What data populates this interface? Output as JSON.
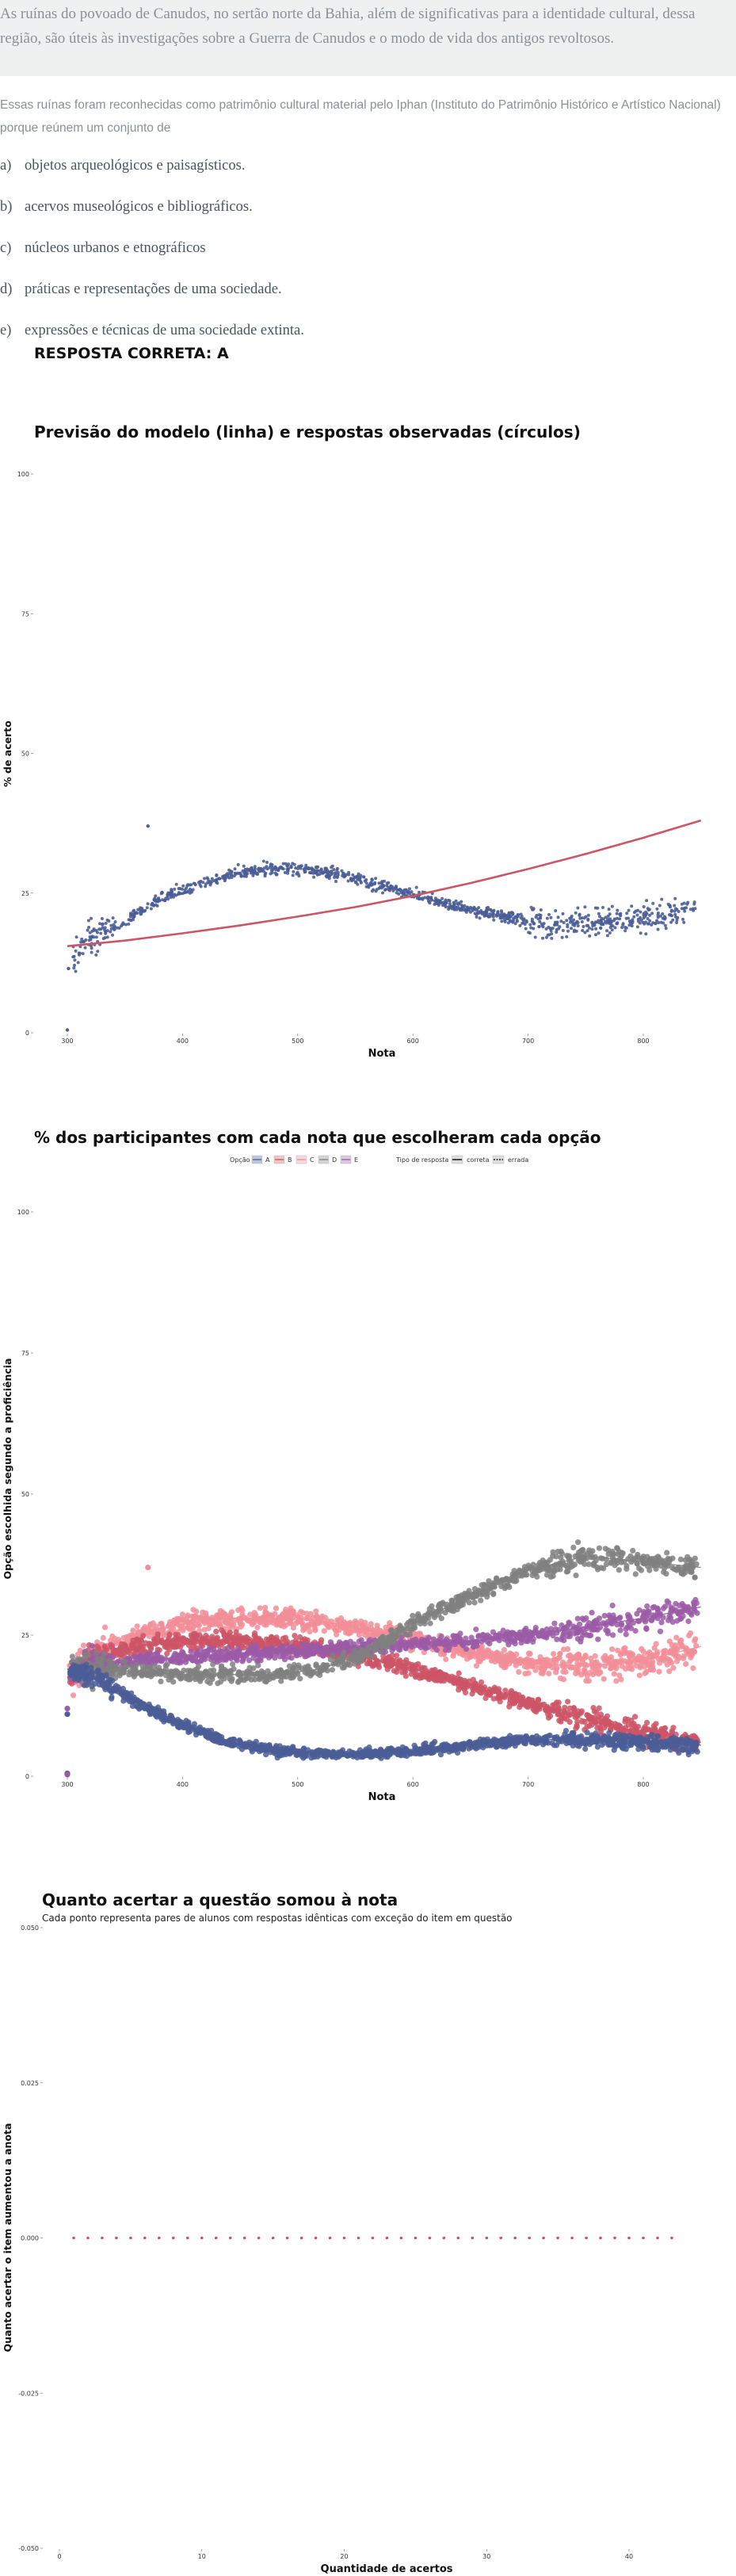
{
  "question": {
    "stem": "As ruínas do povoado de Canudos, no sertão norte da Bahia, além de significativas para a identidade cultural, dessa região, são úteis às investigações sobre a Guerra de Canudos e o modo de vida dos antigos revoltosos.",
    "source": "Essas ruínas foram reconhecidas como patrimônio cultural material pelo Iphan (Instituto do Patrimônio Histórico e Artístico Nacional) porque reúnem um conjunto de",
    "options": [
      {
        "letter": "a)",
        "text": "objetos arqueológicos e paisagísticos."
      },
      {
        "letter": "b)",
        "text": "acervos museológicos e bibliográficos."
      },
      {
        "letter": "c)",
        "text": "núcleos urbanos e etnográficos"
      },
      {
        "letter": "d)",
        "text": "práticas e representações de uma sociedade."
      },
      {
        "letter": "e)",
        "text": "expressões e técnicas de uma sociedade extinta."
      }
    ],
    "answer": "RESPOSTA CORRETA: A"
  },
  "colors": {
    "A": "#4a5d96",
    "B": "#cc5566",
    "C": "#f28e98",
    "D": "#808080",
    "E": "#9b5ba6",
    "model": "#cc5566",
    "stem_bg": "#eef1f0"
  },
  "chart_data": [
    {
      "type": "scatter",
      "title": "Previsão do modelo (linha) e respostas observadas (círculos)",
      "xlabel": "Nota",
      "ylabel": "% de acerto",
      "xlim": [
        300,
        850
      ],
      "ylim": [
        0,
        100
      ],
      "x_ticks": [
        "300",
        "400",
        "500",
        "600",
        "700",
        "800"
      ],
      "y_ticks": [
        "0",
        "25",
        "50",
        "75",
        "100"
      ],
      "observed_trend": {
        "x": [
          300,
          320,
          350,
          380,
          420,
          460,
          500,
          540,
          580,
          620,
          660,
          700,
          740,
          780,
          820,
          850
        ],
        "y": [
          12,
          17,
          20,
          24,
          27,
          29,
          29.5,
          28,
          26,
          23.5,
          21.5,
          20,
          19.5,
          20,
          21,
          22
        ]
      },
      "outliers": [
        {
          "x": 300,
          "y": 0.5
        },
        {
          "x": 301,
          "y": 11.5
        },
        {
          "x": 370,
          "y": 37
        }
      ],
      "model_line": {
        "x": [
          300,
          350,
          400,
          450,
          500,
          550,
          600,
          650,
          700,
          750,
          800,
          850
        ],
        "y": [
          15.5,
          16.5,
          17.8,
          19.2,
          20.8,
          22.5,
          24.5,
          26.8,
          29.3,
          32.0,
          34.9,
          38.0
        ]
      }
    },
    {
      "type": "scatter",
      "title": "% dos participantes com cada nota que escolheram cada opção",
      "xlabel": "Nota",
      "ylabel": "Opção escolhida segundo a proficiência",
      "xlim": [
        300,
        850
      ],
      "ylim": [
        0,
        100
      ],
      "x_ticks": [
        "300",
        "400",
        "500",
        "600",
        "700",
        "800"
      ],
      "y_ticks": [
        "0",
        "25",
        "50",
        "75",
        "100"
      ],
      "legend": {
        "option_title": "Opção",
        "options": [
          "A",
          "B",
          "C",
          "D",
          "E"
        ],
        "type_title": "Tipo de resposta",
        "types": [
          "correta",
          "errada"
        ]
      },
      "series": [
        {
          "name": "A",
          "x": [
            300,
            330,
            360,
            400,
            440,
            480,
            520,
            560,
            600,
            650,
            700,
            750,
            800,
            850
          ],
          "y": [
            19,
            17,
            13,
            9,
            6,
            4.5,
            4,
            4,
            4.5,
            5.5,
            6.5,
            6.5,
            6,
            5.5
          ]
        },
        {
          "name": "B",
          "x": [
            300,
            330,
            360,
            400,
            440,
            480,
            520,
            560,
            600,
            650,
            700,
            750,
            800,
            850
          ],
          "y": [
            18,
            21,
            23,
            24,
            24,
            23.5,
            22.5,
            21,
            19,
            16,
            13,
            10,
            7.5,
            6
          ]
        },
        {
          "name": "C",
          "x": [
            300,
            330,
            360,
            400,
            440,
            480,
            520,
            560,
            600,
            650,
            700,
            750,
            800,
            850
          ],
          "y": [
            17,
            22,
            25,
            27,
            28,
            28,
            27.5,
            26,
            24.5,
            22,
            20,
            19.5,
            20.5,
            23
          ]
        },
        {
          "name": "D",
          "x": [
            300,
            330,
            360,
            400,
            440,
            480,
            520,
            560,
            600,
            650,
            700,
            750,
            800,
            850
          ],
          "y": [
            19,
            19,
            18.5,
            18,
            18,
            18,
            19,
            22,
            27,
            32,
            36.5,
            39,
            38,
            37
          ]
        },
        {
          "name": "E",
          "x": [
            300,
            330,
            360,
            400,
            440,
            480,
            520,
            560,
            600,
            650,
            700,
            750,
            800,
            850
          ],
          "y": [
            19,
            20,
            20.5,
            21,
            21.5,
            22,
            22.5,
            23,
            23.5,
            24,
            25,
            26.5,
            28,
            30
          ]
        }
      ],
      "outliers": [
        {
          "series": "A",
          "x": 300,
          "y": 0.5
        },
        {
          "series": "A",
          "x": 300,
          "y": 11
        },
        {
          "series": "C",
          "x": 370,
          "y": 37
        },
        {
          "series": "E",
          "x": 300,
          "y": 0.3
        },
        {
          "series": "E",
          "x": 300,
          "y": 12
        }
      ]
    },
    {
      "type": "scatter",
      "title": "Quanto acertar a questão somou à nota",
      "subtitle": "Cada ponto representa pares de alunos com respostas idênticas com exceção do item em questão",
      "xlabel": "Quantidade de acertos",
      "ylabel": "Quanto acertar o item aumentou a anota",
      "xlim": [
        -0.5,
        45.5
      ],
      "ylim": [
        -0.05,
        0.05
      ],
      "x_ticks": [
        "0",
        "10",
        "20",
        "30",
        "40"
      ],
      "y_ticks": [
        "-0.050",
        "-0.025",
        "0.000",
        "0.025",
        "0.050"
      ],
      "points": {
        "x": [
          1,
          2,
          3,
          4,
          5,
          6,
          7,
          8,
          9,
          10,
          11,
          12,
          13,
          14,
          15,
          16,
          17,
          18,
          19,
          20,
          21,
          22,
          23,
          24,
          25,
          26,
          27,
          28,
          29,
          30,
          31,
          32,
          33,
          34,
          35,
          36,
          37,
          38,
          39,
          40,
          41,
          42,
          43
        ],
        "y": [
          0,
          0,
          0,
          0,
          0,
          0,
          0,
          0,
          0,
          0,
          0,
          0,
          0,
          0,
          0,
          0,
          0,
          0,
          0,
          0,
          0,
          0,
          0,
          0,
          0,
          0,
          0,
          0,
          0,
          0,
          0,
          0,
          0,
          0,
          0,
          0,
          0,
          0,
          0,
          0,
          0,
          0,
          0
        ]
      }
    }
  ]
}
